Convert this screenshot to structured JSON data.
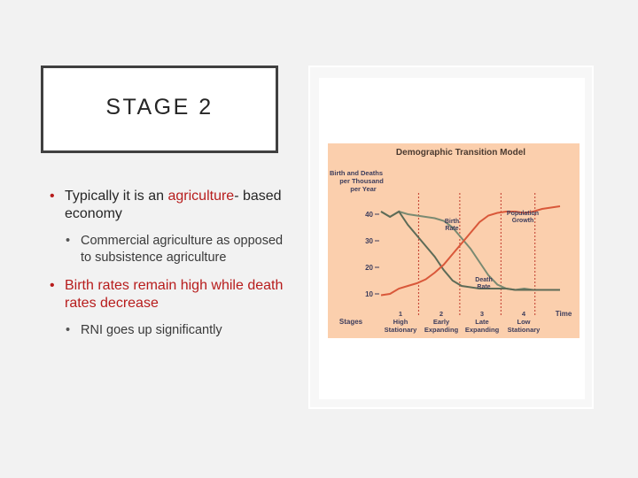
{
  "slide": {
    "title": "STAGE 2",
    "bullets": [
      {
        "text_pre": "Typically it is an ",
        "text_highlight": "agriculture",
        "text_post": "- based economy",
        "sub": "Commercial agriculture as opposed to subsistence agriculture"
      },
      {
        "text_pre": "",
        "text_highlight": "Birth rates remain high while death rates decrease",
        "text_post": "",
        "sub": "RNI goes up significantly"
      }
    ],
    "highlight_color": "#b71c1c"
  },
  "chart_data": {
    "type": "line",
    "title": "Demographic Transition Model",
    "ylabel": "Birth and Deaths per Thousand per Year",
    "xlabel": "Time",
    "y_ticks": [
      "40",
      "30",
      "20",
      "10"
    ],
    "ylim": [
      0,
      50
    ],
    "stages_label": "Stages",
    "stages": [
      {
        "num": "1",
        "line1": "High",
        "line2": "Stationary"
      },
      {
        "num": "2",
        "line1": "Early",
        "line2": "Expanding"
      },
      {
        "num": "3",
        "line1": "Late",
        "line2": "Expanding"
      },
      {
        "num": "4",
        "line1": "Low",
        "line2": "Stationary"
      }
    ],
    "annotations": {
      "birth_rate": [
        "Birth",
        "Rate"
      ],
      "death_rate": [
        "Death",
        "Rate"
      ],
      "population_growth": [
        "Population",
        "Growth"
      ]
    },
    "series": [
      {
        "name": "Birth Rate",
        "color": "#7a8a72",
        "x": [
          0,
          0.5,
          1,
          1.5,
          2,
          2.5,
          3,
          3.5,
          4,
          4.5,
          5,
          5.5,
          6,
          6.5,
          7,
          7.5,
          8,
          8.5,
          9,
          9.5,
          10
        ],
        "values": [
          41,
          39,
          41,
          40,
          39.5,
          39,
          38.5,
          37.5,
          35,
          31,
          27,
          22,
          17,
          13.5,
          12,
          11.5,
          12,
          11.5,
          11.5,
          11.5,
          11.5
        ]
      },
      {
        "name": "Death Rate",
        "color": "#5d6b57",
        "x": [
          0,
          0.5,
          1,
          1.5,
          2,
          2.5,
          3,
          3.5,
          4,
          4.5,
          5,
          5.5,
          6,
          6.5,
          7,
          7.5,
          8,
          8.5,
          9,
          9.5,
          10
        ],
        "values": [
          41,
          39,
          41,
          36,
          32,
          28,
          24,
          19,
          15,
          13,
          12.5,
          12,
          12,
          12,
          12,
          11.5,
          11.5,
          11.5,
          11.5,
          11.5,
          11.5
        ]
      },
      {
        "name": "Population",
        "color": "#d9583a",
        "x": [
          0,
          0.5,
          1,
          1.5,
          2,
          2.5,
          3,
          3.5,
          4,
          4.5,
          5,
          5.5,
          6,
          6.5,
          7,
          7.5,
          8,
          8.5,
          9,
          9.5,
          10
        ],
        "values": [
          9.5,
          10,
          12,
          13,
          14,
          15.5,
          18,
          21,
          25,
          29,
          33,
          37,
          39.5,
          40.5,
          41,
          41,
          40.5,
          41,
          42,
          42.5,
          43
        ]
      }
    ]
  }
}
